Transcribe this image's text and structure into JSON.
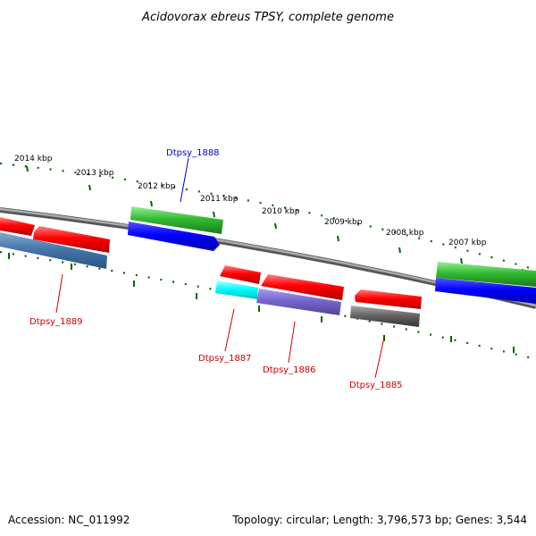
{
  "title": "Acidovorax ebreus TPSY, complete genome",
  "footer": {
    "accession": "Accession: NC_011992",
    "summary": "Topology: circular; Length: 3,796,573 bp; Genes: 3,544"
  },
  "ruler": {
    "labels": [
      "2014 kbp",
      "2013 kbp",
      "2012 kbp",
      "2011 kbp",
      "2010 kbp",
      "2009 kbp",
      "2008 kbp",
      "2007 kbp"
    ]
  },
  "gene_labels": [
    {
      "text": "Dtpsy_1888",
      "color": "#0000cc"
    },
    {
      "text": "Dtpsy_1889",
      "color": "#cc0000"
    },
    {
      "text": "Dtpsy_1887",
      "color": "#cc0000"
    },
    {
      "text": "Dtpsy_1886",
      "color": "#cc0000"
    },
    {
      "text": "Dtpsy_1885",
      "color": "#cc0000"
    }
  ],
  "colors": {
    "red": "#ff0000",
    "green": "#33cc33",
    "blue": "#0000ff",
    "steelblue": "#4477aa",
    "cyan": "#00ffff",
    "slateblue": "#7766cc",
    "gray": "#666666",
    "backbone": "#888888",
    "tick": "#006600"
  }
}
